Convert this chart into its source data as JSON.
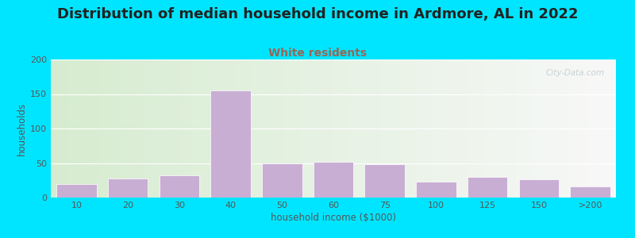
{
  "title": "Distribution of median household income in Ardmore, AL in 2022",
  "subtitle": "White residents",
  "xlabel": "household income ($1000)",
  "ylabel": "households",
  "categories": [
    "10",
    "20",
    "30",
    "40",
    "50",
    "60",
    "75",
    "100",
    "125",
    "150",
    ">200"
  ],
  "values": [
    20,
    28,
    32,
    155,
    50,
    52,
    48,
    23,
    30,
    26,
    16
  ],
  "bar_color": "#c9aed4",
  "bar_edgecolor": "#ffffff",
  "background_outer": "#00e5ff",
  "background_inner_left": "#d6ecd0",
  "background_inner_right": "#f8f8f8",
  "title_color": "#222222",
  "subtitle_color": "#996655",
  "xlabel_color": "#555555",
  "ylabel_color": "#555555",
  "tick_color": "#555555",
  "ylim": [
    0,
    200
  ],
  "yticks": [
    0,
    50,
    100,
    150,
    200
  ],
  "watermark_text": "City-Data.com",
  "watermark_color": "#b8c4cc",
  "title_fontsize": 13,
  "subtitle_fontsize": 10,
  "label_fontsize": 8.5,
  "tick_fontsize": 8
}
